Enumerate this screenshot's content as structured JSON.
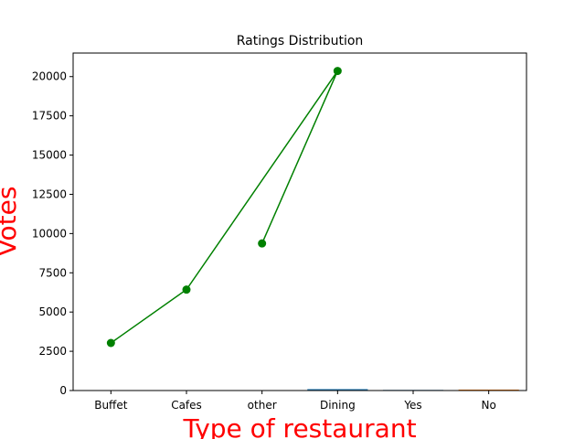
{
  "chart_data": {
    "type": "line",
    "title": "Ratings Distribution",
    "xlabel": "Type of restaurant",
    "ylabel": "Votes",
    "label_color": "#ff0000",
    "categories": [
      "Buffet",
      "Cafes",
      "other",
      "Dining",
      "Yes",
      "No"
    ],
    "ylim": [
      0,
      21500
    ],
    "yticks": [
      "0",
      "2500",
      "5000",
      "7500",
      "10000",
      "12500",
      "15000",
      "17500",
      "20000"
    ],
    "ytick_values": [
      0,
      2500,
      5000,
      7500,
      10000,
      12500,
      15000,
      17500,
      20000
    ],
    "line_series": {
      "color": "#008000",
      "marker": "circle",
      "points": [
        {
          "x": "Buffet",
          "y": 3030
        },
        {
          "x": "Cafes",
          "y": 6430
        },
        {
          "x": "Dining",
          "y": 20360
        },
        {
          "x": "other",
          "y": 9370
        }
      ]
    },
    "bar_series": [
      {
        "color": "#1f77b4",
        "bars": [
          {
            "x": "Dining",
            "y": 90
          },
          {
            "x": "Yes",
            "y": 40
          }
        ]
      },
      {
        "color": "#ff7f0e",
        "bars": [
          {
            "x": "Yes",
            "y": 30
          },
          {
            "x": "No",
            "y": 60
          }
        ]
      }
    ],
    "grid": false,
    "legend": "none"
  }
}
